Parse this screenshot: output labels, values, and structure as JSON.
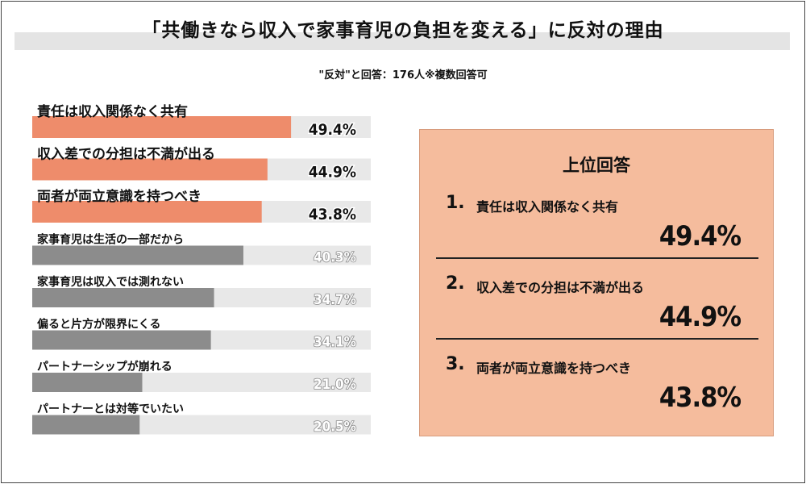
{
  "header": {
    "title": "「共働きなら収入で家事育児の負担を変える」に反対の理由",
    "subtitle": "\"反対\"と回答：176人※複数回答可"
  },
  "chart_data": {
    "type": "bar",
    "orientation": "horizontal",
    "title": "「共働きなら収入で家事育児の負担を変える」に反対の理由",
    "subtitle": "\"反対\"と回答：176人※複数回答可",
    "unit": "%",
    "xlim": [
      0,
      50
    ],
    "categories": [
      "責任は収入関係なく共有",
      "収入差での分担は不満が出る",
      "両者が両立意識を持つべき",
      "家事育児は生活の一部だから",
      "家事育児は収入では測れない",
      "偏ると片方が限界にくる",
      "パートナーシップが崩れる",
      "パートナーとは対等でいたい"
    ],
    "values": [
      49.4,
      44.9,
      43.8,
      40.3,
      34.7,
      34.1,
      21.0,
      20.5
    ],
    "value_labels": [
      "49.4%",
      "44.9%",
      "43.8%",
      "40.3%",
      "34.7%",
      "34.1%",
      "21.0%",
      "20.5%"
    ],
    "highlight_top": 3,
    "colors": {
      "highlight": "#ee8c6b",
      "normal": "#8c8c8c",
      "track": "#e8e8e8",
      "highlight_label": "#111111",
      "normal_label": "#ffffff"
    }
  },
  "top_panel": {
    "title": "上位回答",
    "ranks": [
      {
        "num": "1.",
        "label": "責任は収入関係なく共有",
        "pct": "49.4%"
      },
      {
        "num": "2.",
        "label": "収入差での分担は不満が出る",
        "pct": "44.9%"
      },
      {
        "num": "3.",
        "label": "両者が両立意識を持つべき",
        "pct": "43.8%"
      }
    ],
    "background": "#f5bc9d"
  }
}
